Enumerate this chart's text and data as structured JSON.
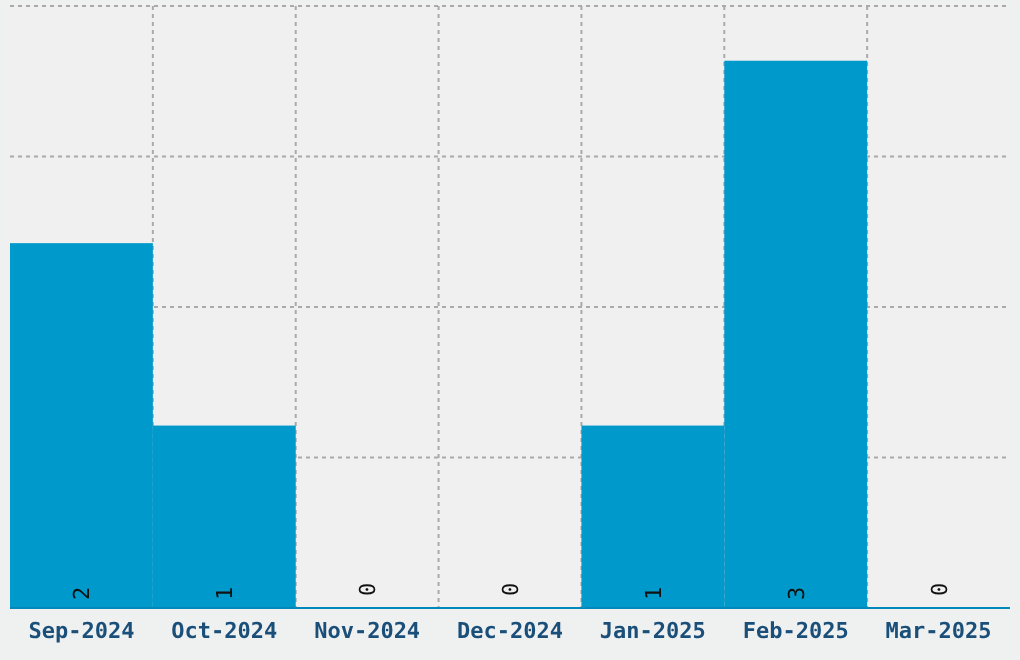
{
  "chart_data": {
    "type": "bar",
    "categories": [
      "Sep-2024",
      "Oct-2024",
      "Nov-2024",
      "Dec-2024",
      "Jan-2025",
      "Feb-2025",
      "Mar-2025"
    ],
    "values": [
      2,
      1,
      0,
      0,
      1,
      3,
      0
    ],
    "color": "#0099cc",
    "ylim": [
      0,
      3.3
    ],
    "yticks": [
      {
        "value": 0,
        "label": null
      },
      {
        "value": 0.825,
        "label": null
      },
      {
        "value": 1.65,
        "label": null
      },
      {
        "value": 2.475,
        "label": null
      },
      {
        "value": 3.3,
        "label": null
      }
    ],
    "tick_labels": "x",
    "grid": true,
    "data_labels": true
  }
}
